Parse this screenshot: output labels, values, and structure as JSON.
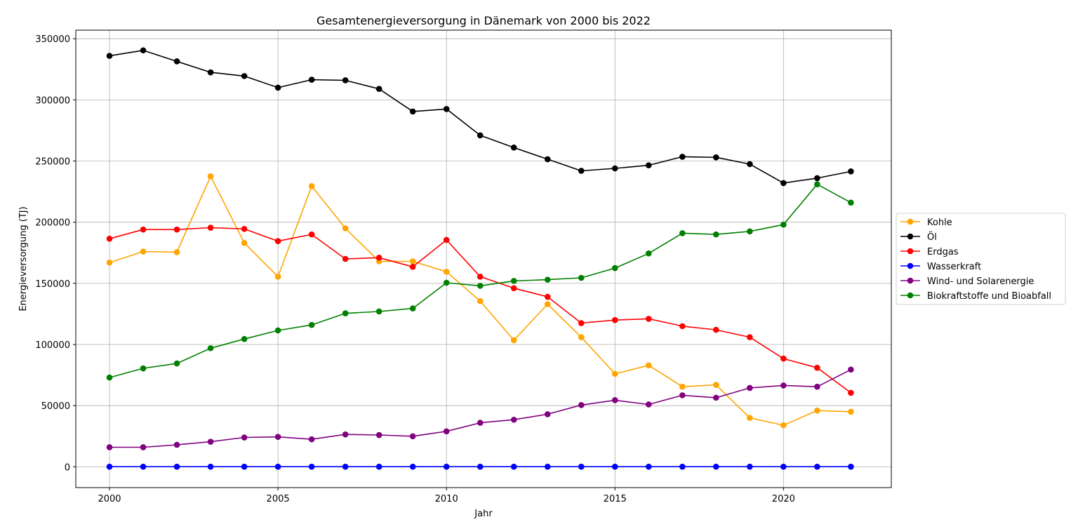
{
  "chart_data": {
    "type": "line",
    "title": "Gesamtenergieversorgung in Dänemark von 2000 bis 2022",
    "xlabel": "Jahr",
    "ylabel": "Energieversorgung (TJ)",
    "xlim": [
      1999,
      2023.2
    ],
    "ylim": [
      -17000,
      357000
    ],
    "x_ticks": [
      2000,
      2005,
      2010,
      2015,
      2020
    ],
    "y_ticks": [
      0,
      50000,
      100000,
      150000,
      200000,
      250000,
      300000,
      350000
    ],
    "grid": true,
    "legend_position": "center-right",
    "x": [
      2000,
      2001,
      2002,
      2003,
      2004,
      2005,
      2006,
      2007,
      2008,
      2009,
      2010,
      2011,
      2012,
      2013,
      2014,
      2015,
      2016,
      2017,
      2018,
      2019,
      2020,
      2021,
      2022
    ],
    "series": [
      {
        "name": "Kohle",
        "color": "#FFA500",
        "values": [
          167000,
          176000,
          175500,
          237500,
          183000,
          155500,
          229500,
          195000,
          168000,
          168000,
          159500,
          135500,
          103500,
          133000,
          106000,
          76000,
          83000,
          65500,
          67000,
          40000,
          34000,
          46000,
          45000
        ]
      },
      {
        "name": "Öl",
        "color": "#000000",
        "values": [
          336000,
          340500,
          331500,
          322500,
          319500,
          310000,
          316500,
          316000,
          309000,
          290500,
          292500,
          271000,
          261000,
          251500,
          242000,
          244000,
          246500,
          253500,
          253000,
          247500,
          232000,
          236000,
          241500
        ]
      },
      {
        "name": "Erdgas",
        "color": "#FF0000",
        "values": [
          186500,
          194000,
          194000,
          195500,
          194500,
          184500,
          190000,
          170000,
          171000,
          163500,
          185500,
          155500,
          146000,
          139000,
          117500,
          120000,
          121000,
          115000,
          112000,
          106000,
          88500,
          81000,
          60500
        ]
      },
      {
        "name": "Wasserkraft",
        "color": "#0000FF",
        "values": [
          100,
          100,
          100,
          100,
          100,
          100,
          100,
          100,
          100,
          100,
          100,
          100,
          100,
          100,
          100,
          100,
          100,
          100,
          100,
          100,
          100,
          100,
          100
        ]
      },
      {
        "name": "Wind- und Solarenergie",
        "color": "#800080",
        "values": [
          16000,
          16000,
          18000,
          20500,
          24000,
          24500,
          22500,
          26500,
          26000,
          25000,
          29000,
          36000,
          38500,
          43000,
          50500,
          54500,
          51000,
          58500,
          56500,
          64500,
          66500,
          65500,
          79500
        ]
      },
      {
        "name": "Biokraftstoffe und Bioabfall",
        "color": "#008000",
        "values": [
          73000,
          80500,
          84500,
          97000,
          104500,
          111500,
          116000,
          125500,
          127000,
          129500,
          150500,
          148000,
          152000,
          153000,
          154500,
          162500,
          174500,
          191000,
          190000,
          192500,
          198000,
          231000,
          216000
        ]
      }
    ]
  }
}
